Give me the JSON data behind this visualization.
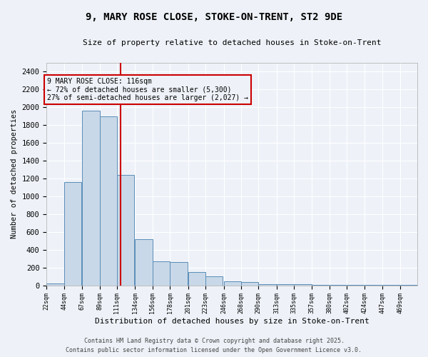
{
  "title_line1": "9, MARY ROSE CLOSE, STOKE-ON-TRENT, ST2 9DE",
  "title_line2": "Size of property relative to detached houses in Stoke-on-Trent",
  "xlabel": "Distribution of detached houses by size in Stoke-on-Trent",
  "ylabel": "Number of detached properties",
  "footer_line1": "Contains HM Land Registry data © Crown copyright and database right 2025.",
  "footer_line2": "Contains public sector information licensed under the Open Government Licence v3.0.",
  "annotation_line1": "9 MARY ROSE CLOSE: 116sqm",
  "annotation_line2": "← 72% of detached houses are smaller (5,300)",
  "annotation_line3": "27% of semi-detached houses are larger (2,027) →",
  "property_size": 116,
  "bins": [
    22,
    44,
    67,
    89,
    111,
    134,
    156,
    178,
    201,
    223,
    246,
    268,
    290,
    313,
    335,
    357,
    380,
    402,
    424,
    447,
    469
  ],
  "bar_heights": [
    20,
    1160,
    1960,
    1900,
    1240,
    520,
    270,
    260,
    150,
    100,
    45,
    40,
    15,
    15,
    10,
    5,
    5,
    5,
    5,
    5,
    5
  ],
  "bar_color": "#c8d8e8",
  "bar_edge_color": "#5b8db8",
  "vline_color": "#cc0000",
  "annotation_box_color": "#cc0000",
  "bg_color": "#eef2f8",
  "grid_color": "#ffffff",
  "ylim": [
    0,
    2500
  ],
  "yticks": [
    0,
    200,
    400,
    600,
    800,
    1000,
    1200,
    1400,
    1600,
    1800,
    2000,
    2200,
    2400
  ]
}
